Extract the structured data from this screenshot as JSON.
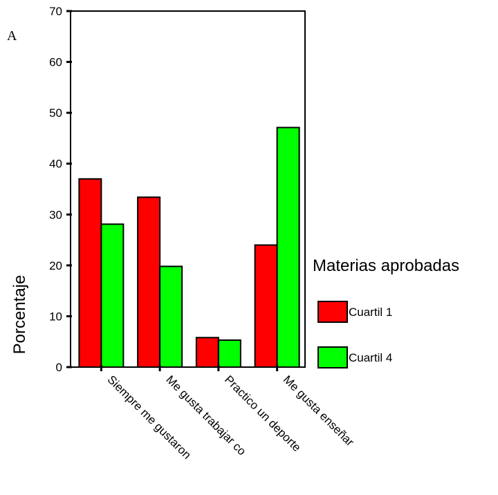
{
  "chart_data": {
    "type": "bar",
    "panel_label": "A",
    "categories": [
      "Siempre me gustaron",
      "Me gusta trabajar co",
      "Practico un deporte",
      "Me gusta enseñar"
    ],
    "series": [
      {
        "name": "Cuartil 1",
        "color": "#ff0000",
        "values": [
          37,
          33.4,
          5.8,
          24
        ]
      },
      {
        "name": "Cuartil 4",
        "color": "#00ff00",
        "values": [
          28.1,
          19.8,
          5.3,
          47.1
        ]
      }
    ],
    "xlabel": "",
    "ylabel": "Porcentaje",
    "ylim": [
      0,
      70
    ],
    "yticks": [
      "0",
      "10",
      "20",
      "30",
      "40",
      "50",
      "60",
      "70"
    ],
    "legend": {
      "title": "Materias aprobadas",
      "position": "right"
    },
    "grid": false
  }
}
